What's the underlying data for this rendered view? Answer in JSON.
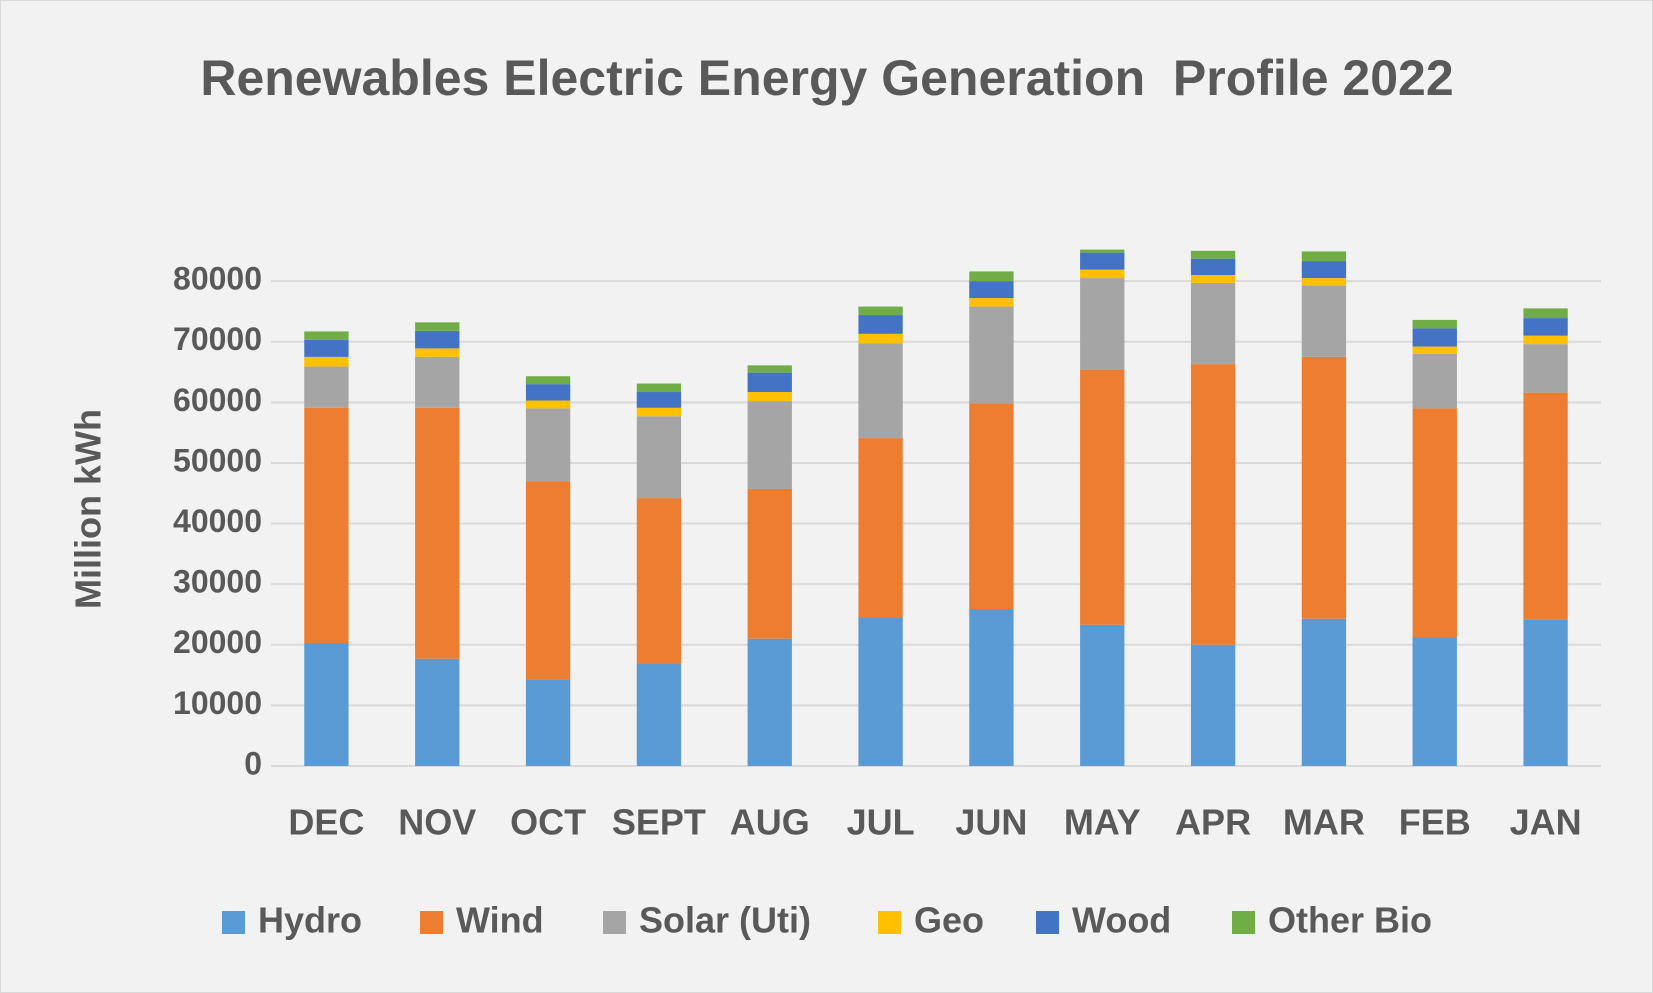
{
  "chart_data": {
    "type": "stacked_bar",
    "title": "Renewables Electric Energy Generation  Profile 2022",
    "y_label": "Million kWh",
    "categories": [
      "DEC",
      "NOV",
      "OCT",
      "SEPT",
      "AUG",
      "JUL",
      "JUN",
      "MAY",
      "APR",
      "MAR",
      "FEB",
      "JAN"
    ],
    "series": [
      {
        "name": "Hydro",
        "color": "#5b9bd5",
        "values": [
          20300,
          17700,
          14300,
          16900,
          21000,
          24500,
          25900,
          23300,
          20000,
          24300,
          21200,
          24200
        ]
      },
      {
        "name": "Wind",
        "color": "#ed7d31",
        "values": [
          38800,
          41400,
          32700,
          27300,
          24700,
          29600,
          33900,
          42100,
          46300,
          43200,
          37800,
          37400
        ]
      },
      {
        "name": "Solar (Uti)",
        "color": "#a5a5a5",
        "values": [
          6800,
          8400,
          12000,
          13500,
          14500,
          15600,
          16000,
          15100,
          13400,
          11800,
          9000,
          8000
        ]
      },
      {
        "name": "Geo",
        "color": "#ffc000",
        "values": [
          1600,
          1400,
          1300,
          1400,
          1500,
          1600,
          1400,
          1400,
          1300,
          1200,
          1200,
          1400
        ]
      },
      {
        "name": "Wood",
        "color": "#4472c4",
        "values": [
          2800,
          2900,
          2700,
          2600,
          3200,
          3100,
          2800,
          2800,
          2700,
          2800,
          3000,
          2900
        ]
      },
      {
        "name": "Other Bio",
        "color": "#70ad47",
        "values": [
          1400,
          1400,
          1300,
          1400,
          1200,
          1400,
          1600,
          500,
          1300,
          1600,
          1400,
          1600
        ]
      }
    ],
    "ylim": [
      0,
      90000
    ],
    "yticks": [
      0,
      10000,
      20000,
      30000,
      40000,
      50000,
      60000,
      70000,
      80000
    ],
    "grid": true,
    "legend": "bottom"
  }
}
